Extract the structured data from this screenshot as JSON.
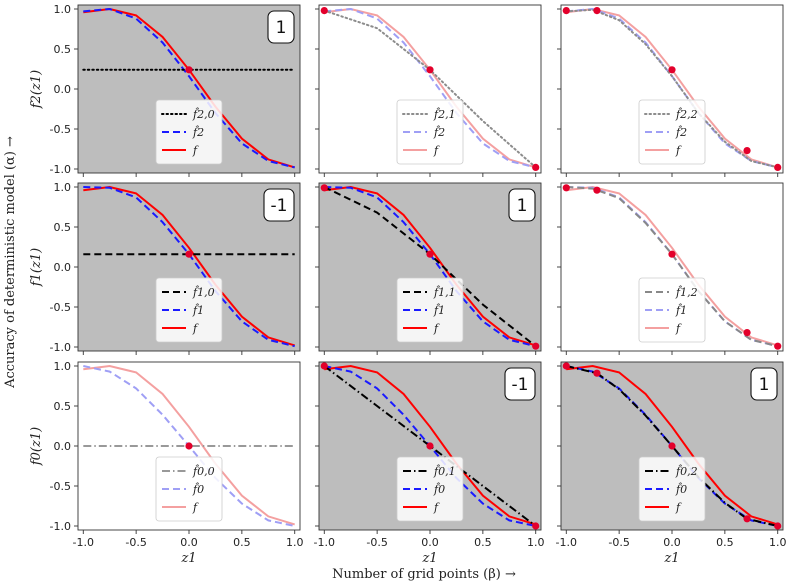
{
  "figure": {
    "supxlabel": "Number of grid points (β) →",
    "supylabel": "Accuracy of deterministic model (α) →"
  },
  "colors": {
    "shade": "#bdbdbd",
    "red": "#ff0000",
    "blue": "#1a1aff",
    "faint_red": "#f4a0a0",
    "faint_blue": "#9f9ff5",
    "marker": "#e3002b",
    "black": "#000000",
    "gray_dot": "#8c8c8c",
    "gray_dash": "#888888",
    "gray_dashdot": "#999999"
  },
  "chart_data": {
    "type": "line",
    "xlim": [
      -1.05,
      1.05
    ],
    "ylim": [
      -1.05,
      1.05
    ],
    "xticks": [
      "-1.0",
      "-0.5",
      "0.0",
      "0.5",
      "1.0"
    ],
    "yticks": [
      "1.0",
      "0.5",
      "0.0",
      "-0.5",
      "-1.0"
    ],
    "xlabel": "z1",
    "row_ylabels": [
      "f2(z1)",
      "f1(z1)",
      "f0(z1)"
    ],
    "true_function_f": {
      "x": [
        -1.0,
        -0.75,
        -0.5,
        -0.25,
        0.0,
        0.25,
        0.5,
        0.75,
        1.0
      ],
      "y": [
        0.96,
        1.0,
        0.92,
        0.65,
        0.24,
        -0.22,
        -0.62,
        -0.88,
        -0.98
      ]
    },
    "panels": [
      {
        "row": 0,
        "col": 0,
        "shaded": true,
        "badge": "1",
        "approx": {
          "label": "f̂2,0",
          "style": "dotted",
          "color": "black",
          "x": [
            -1.0,
            1.0
          ],
          "y": [
            0.24,
            0.24
          ]
        },
        "fhat": {
          "label": "f̂2",
          "style": "dashed",
          "color": "blue",
          "x": [
            -1.0,
            -0.75,
            -0.5,
            -0.25,
            0.0,
            0.25,
            0.5,
            0.75,
            1.0
          ],
          "y": [
            0.97,
            1.0,
            0.88,
            0.58,
            0.16,
            -0.3,
            -0.68,
            -0.9,
            -0.98
          ]
        },
        "f": {
          "label": "f",
          "style": "solid",
          "color": "red"
        },
        "markers": {
          "x": [
            0.0
          ],
          "y": [
            0.24
          ]
        }
      },
      {
        "row": 0,
        "col": 1,
        "shaded": false,
        "badge": "",
        "approx": {
          "label": "f̂2,1",
          "style": "dotted",
          "color": "gray_dot",
          "x": [
            -1.0,
            -0.5,
            0.0,
            0.5,
            1.0
          ],
          "y": [
            0.98,
            0.76,
            0.24,
            -0.4,
            -0.98
          ]
        },
        "fhat": {
          "label": "f̂2",
          "style": "dashed",
          "color": "faint_blue",
          "x": [
            -1.0,
            -0.75,
            -0.5,
            -0.25,
            0.0,
            0.25,
            0.5,
            0.75,
            1.0
          ],
          "y": [
            0.97,
            1.0,
            0.88,
            0.58,
            0.16,
            -0.3,
            -0.68,
            -0.9,
            -0.98
          ]
        },
        "f": {
          "label": "f",
          "style": "solid",
          "color": "faint_red"
        },
        "markers": {
          "x": [
            -1.0,
            0.0,
            1.0
          ],
          "y": [
            0.98,
            0.24,
            -0.98
          ]
        }
      },
      {
        "row": 0,
        "col": 2,
        "shaded": false,
        "badge": "",
        "approx": {
          "label": "f̂2,2",
          "style": "dotted",
          "color": "gray_dot",
          "x": [
            -1.0,
            -0.75,
            -0.5,
            -0.25,
            0.0,
            0.25,
            0.5,
            0.75,
            1.0
          ],
          "y": [
            0.97,
            0.99,
            0.86,
            0.56,
            0.16,
            -0.3,
            -0.66,
            -0.9,
            -0.98
          ]
        },
        "fhat": {
          "label": "f̂2",
          "style": "dashed",
          "color": "faint_blue",
          "x": [
            -1.0,
            -0.75,
            -0.5,
            -0.25,
            0.0,
            0.25,
            0.5,
            0.75,
            1.0
          ],
          "y": [
            0.97,
            1.0,
            0.88,
            0.58,
            0.16,
            -0.3,
            -0.68,
            -0.9,
            -0.98
          ]
        },
        "f": {
          "label": "f",
          "style": "solid",
          "color": "faint_red"
        },
        "markers": {
          "x": [
            -1.0,
            -0.71,
            0.0,
            0.71,
            1.0
          ],
          "y": [
            0.98,
            0.98,
            0.24,
            -0.77,
            -0.98
          ]
        }
      },
      {
        "row": 1,
        "col": 0,
        "shaded": true,
        "badge": "-1",
        "approx": {
          "label": "f̂1,0",
          "style": "dashed",
          "color": "black",
          "x": [
            -1.0,
            1.0
          ],
          "y": [
            0.16,
            0.16
          ]
        },
        "fhat": {
          "label": "f̂1",
          "style": "dashed",
          "color": "blue",
          "x": [
            -1.0,
            -0.75,
            -0.5,
            -0.25,
            0.0,
            0.25,
            0.5,
            0.75,
            1.0
          ],
          "y": [
            1.0,
            0.99,
            0.87,
            0.56,
            0.16,
            -0.3,
            -0.68,
            -0.91,
            -0.99
          ]
        },
        "f": {
          "label": "f",
          "style": "solid",
          "color": "red"
        },
        "markers": {
          "x": [
            0.0
          ],
          "y": [
            0.16
          ]
        }
      },
      {
        "row": 1,
        "col": 1,
        "shaded": true,
        "badge": "1",
        "approx": {
          "label": "f̂1,1",
          "style": "dashed",
          "color": "black",
          "x": [
            -1.0,
            -0.5,
            0.0,
            0.5,
            1.0
          ],
          "y": [
            1.0,
            0.68,
            0.16,
            -0.47,
            -0.99
          ]
        },
        "fhat": {
          "label": "f̂1",
          "style": "dashed",
          "color": "blue",
          "x": [
            -1.0,
            -0.75,
            -0.5,
            -0.25,
            0.0,
            0.25,
            0.5,
            0.75,
            1.0
          ],
          "y": [
            1.0,
            0.99,
            0.87,
            0.56,
            0.16,
            -0.3,
            -0.68,
            -0.91,
            -0.99
          ]
        },
        "f": {
          "label": "f",
          "style": "solid",
          "color": "red"
        },
        "markers": {
          "x": [
            -1.0,
            0.0,
            1.0
          ],
          "y": [
            0.99,
            0.16,
            -0.99
          ]
        }
      },
      {
        "row": 1,
        "col": 2,
        "shaded": false,
        "badge": "",
        "approx": {
          "label": "f̂1,2",
          "style": "dashed",
          "color": "gray_dash",
          "x": [
            -1.0,
            -0.75,
            -0.5,
            -0.25,
            0.0,
            0.25,
            0.5,
            0.75,
            1.0
          ],
          "y": [
            1.0,
            0.98,
            0.86,
            0.55,
            0.16,
            -0.3,
            -0.68,
            -0.91,
            -0.99
          ]
        },
        "fhat": {
          "label": "f̂1",
          "style": "dashed",
          "color": "faint_blue",
          "x": [
            -1.0,
            -0.75,
            -0.5,
            -0.25,
            0.0,
            0.25,
            0.5,
            0.75,
            1.0
          ],
          "y": [
            1.0,
            0.99,
            0.87,
            0.56,
            0.16,
            -0.3,
            -0.68,
            -0.91,
            -0.99
          ]
        },
        "f": {
          "label": "f",
          "style": "solid",
          "color": "faint_red"
        },
        "markers": {
          "x": [
            -1.0,
            -0.71,
            0.0,
            0.71,
            1.0
          ],
          "y": [
            0.99,
            0.96,
            0.16,
            -0.82,
            -0.99
          ]
        }
      },
      {
        "row": 2,
        "col": 0,
        "shaded": false,
        "badge": "",
        "approx": {
          "label": "f̂0,0",
          "style": "dashdot",
          "color": "gray_dashdot",
          "x": [
            -1.0,
            1.0
          ],
          "y": [
            0.0,
            0.0
          ]
        },
        "fhat": {
          "label": "f̂0",
          "style": "dashed",
          "color": "faint_blue",
          "x": [
            -1.0,
            -0.75,
            -0.5,
            -0.25,
            0.0,
            0.25,
            0.5,
            0.75,
            1.0
          ],
          "y": [
            1.0,
            0.93,
            0.72,
            0.39,
            0.0,
            -0.4,
            -0.72,
            -0.93,
            -1.0
          ]
        },
        "f": {
          "label": "f",
          "style": "solid",
          "color": "faint_red"
        },
        "markers": {
          "x": [
            0.0
          ],
          "y": [
            0.0
          ]
        }
      },
      {
        "row": 2,
        "col": 1,
        "shaded": true,
        "badge": "-1",
        "approx": {
          "label": "f̂0,1",
          "style": "dashdot",
          "color": "black",
          "x": [
            -1.0,
            -0.5,
            0.0,
            0.5,
            1.0
          ],
          "y": [
            1.0,
            0.5,
            0.0,
            -0.5,
            -1.0
          ]
        },
        "fhat": {
          "label": "f̂0",
          "style": "dashed",
          "color": "blue",
          "x": [
            -1.0,
            -0.75,
            -0.5,
            -0.25,
            0.0,
            0.25,
            0.5,
            0.75,
            1.0
          ],
          "y": [
            1.0,
            0.93,
            0.72,
            0.39,
            0.0,
            -0.4,
            -0.72,
            -0.93,
            -1.0
          ]
        },
        "f": {
          "label": "f",
          "style": "solid",
          "color": "red"
        },
        "markers": {
          "x": [
            -1.0,
            0.0,
            1.0
          ],
          "y": [
            1.0,
            0.0,
            -1.0
          ]
        }
      },
      {
        "row": 2,
        "col": 2,
        "shaded": true,
        "badge": "1",
        "approx": {
          "label": "f̂0,2",
          "style": "dashdot",
          "color": "black",
          "x": [
            -1.0,
            -0.71,
            -0.5,
            -0.25,
            0.0,
            0.25,
            0.5,
            0.71,
            1.0
          ],
          "y": [
            1.0,
            0.91,
            0.71,
            0.38,
            0.0,
            -0.39,
            -0.71,
            -0.91,
            -1.0
          ]
        },
        "fhat": {
          "label": "f̂0",
          "style": "dashed",
          "color": "blue",
          "x": [
            -1.0,
            -0.75,
            -0.5,
            -0.25,
            0.0,
            0.25,
            0.5,
            0.75,
            1.0
          ],
          "y": [
            1.0,
            0.93,
            0.72,
            0.39,
            0.0,
            -0.4,
            -0.72,
            -0.93,
            -1.0
          ]
        },
        "f": {
          "label": "f",
          "style": "solid",
          "color": "red"
        },
        "markers": {
          "x": [
            -1.0,
            -0.71,
            0.0,
            0.71,
            1.0
          ],
          "y": [
            1.0,
            0.91,
            0.0,
            -0.91,
            -1.0
          ]
        }
      }
    ]
  }
}
